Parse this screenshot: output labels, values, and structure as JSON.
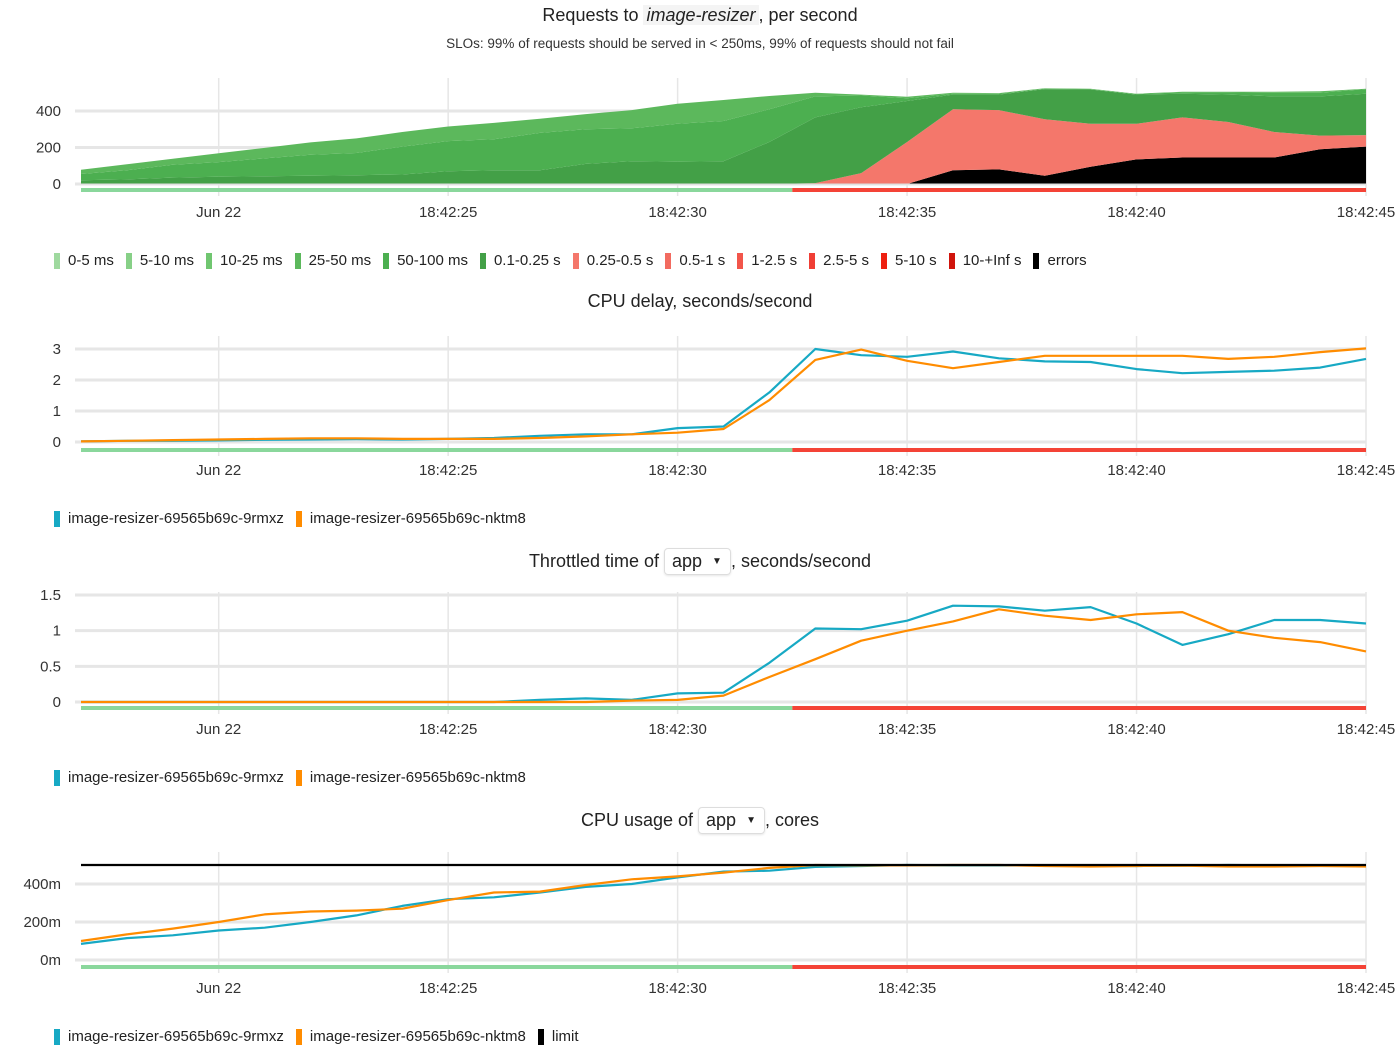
{
  "times": [
    "18:42:17",
    "18:42:18",
    "18:42:19",
    "18:42:20",
    "18:42:21",
    "18:42:22",
    "18:42:23",
    "18:42:24",
    "18:42:25",
    "18:42:26",
    "18:42:27",
    "18:42:28",
    "18:42:29",
    "18:42:30",
    "18:42:31",
    "18:42:32",
    "18:42:33",
    "18:42:34",
    "18:42:35",
    "18:42:36",
    "18:42:37",
    "18:42:38",
    "18:42:39",
    "18:42:40",
    "18:42:41",
    "18:42:42",
    "18:42:43",
    "18:42:44",
    "18:42:45"
  ],
  "x_ticks": [
    {
      "time": "18:42:20",
      "label": "Jun 22"
    },
    {
      "time": "18:42:25",
      "label": "18:42:25"
    },
    {
      "time": "18:42:30",
      "label": "18:42:30"
    },
    {
      "time": "18:42:35",
      "label": "18:42:35"
    },
    {
      "time": "18:42:40",
      "label": "18:42:40"
    },
    {
      "time": "18:42:45",
      "label": "18:42:45"
    }
  ],
  "slo_status": [
    {
      "from": "18:42:17",
      "to": "18:42:32.5",
      "status": "ok",
      "color": "#8ad79c"
    },
    {
      "from": "18:42:32.5",
      "to": "18:42:45",
      "status": "violated",
      "color": "#f44336"
    }
  ],
  "panels": {
    "requests": {
      "title_prefix": "Requests to ",
      "title_service": "image-resizer",
      "title_suffix": ", per second",
      "subtitle": "SLOs: 99% of requests should be served in < 250ms, 99% of requests should not fail"
    },
    "cpu_delay": {
      "title": "CPU delay, seconds/second"
    },
    "throttled": {
      "title_prefix": "Throttled time of ",
      "container": "app",
      "title_suffix": ", seconds/second"
    },
    "cpu_usage": {
      "title_prefix": "CPU usage of ",
      "container": "app",
      "title_suffix": ", cores"
    }
  },
  "chart_data": [
    {
      "type": "area",
      "stacked": true,
      "grid": true,
      "legend": "bottom-left",
      "ylim": [
        0,
        530
      ],
      "y_ticks": [
        {
          "value": 0,
          "label": "0"
        },
        {
          "value": 200,
          "label": "200"
        },
        {
          "value": 400,
          "label": "400"
        }
      ],
      "series": [
        {
          "name": "0-5 ms",
          "color": "#9fd99f",
          "values": []
        },
        {
          "name": "5-10 ms",
          "color": "#87d087",
          "values": []
        },
        {
          "name": "10-25 ms",
          "color": "#70c670",
          "values": []
        },
        {
          "name": "25-50 ms",
          "color": "#5cb85c",
          "values": [
            23,
            33,
            33,
            48,
            58,
            68,
            80,
            80,
            80,
            90,
            78,
            83,
            100,
            110,
            115,
            72,
            20,
            5,
            8,
            5,
            3,
            3,
            2,
            2,
            3,
            3,
            5,
            8,
            2
          ]
        },
        {
          "name": "50-100 ms",
          "color": "#4caf50",
          "values": [
            35,
            50,
            70,
            80,
            98,
            115,
            122,
            153,
            165,
            170,
            205,
            190,
            180,
            208,
            220,
            180,
            115,
            65,
            15,
            5,
            5,
            2,
            2,
            3,
            7,
            12,
            20,
            20,
            25
          ]
        },
        {
          "name": "0.1-0.25 s",
          "color": "#43a047",
          "values": [
            20,
            25,
            35,
            40,
            42,
            45,
            48,
            52,
            70,
            75,
            75,
            110,
            125,
            122,
            125,
            230,
            360,
            360,
            225,
            80,
            85,
            165,
            188,
            160,
            130,
            150,
            195,
            215,
            227
          ]
        },
        {
          "name": "0.25-0.5 s",
          "color": "#f4776b",
          "values": [
            0,
            0,
            0,
            0,
            0,
            0,
            0,
            0,
            0,
            0,
            0,
            0,
            0,
            0,
            0,
            0,
            5,
            60,
            230,
            335,
            325,
            310,
            235,
            195,
            220,
            195,
            140,
            75,
            63
          ]
        },
        {
          "name": "0.5-1 s",
          "color": "#f26b60",
          "values": []
        },
        {
          "name": "1-2.5 s",
          "color": "#f2554a",
          "values": []
        },
        {
          "name": "2.5-5 s",
          "color": "#f03e35",
          "values": []
        },
        {
          "name": "5-10 s",
          "color": "#ee2010",
          "values": []
        },
        {
          "name": "10-+Inf s",
          "color": "#d0140c",
          "values": []
        },
        {
          "name": "errors",
          "color": "#000000",
          "values": [
            0,
            0,
            0,
            0,
            0,
            0,
            0,
            0,
            0,
            0,
            0,
            0,
            0,
            0,
            0,
            0,
            0,
            0,
            0,
            75,
            80,
            45,
            95,
            135,
            145,
            145,
            145,
            190,
            205
          ]
        }
      ]
    },
    {
      "type": "line",
      "grid": true,
      "legend": "bottom-left",
      "ylim": [
        0,
        3.1
      ],
      "y_ticks": [
        {
          "value": 0,
          "label": "0"
        },
        {
          "value": 1,
          "label": "1"
        },
        {
          "value": 2,
          "label": "2"
        },
        {
          "value": 3,
          "label": "3"
        }
      ],
      "series": [
        {
          "name": "image-resizer-69565b69c-9rmxz",
          "color": "#17a9c4",
          "values": [
            0.02,
            0.04,
            0.04,
            0.05,
            0.07,
            0.08,
            0.09,
            0.08,
            0.1,
            0.13,
            0.2,
            0.25,
            0.25,
            0.45,
            0.5,
            1.6,
            3.0,
            2.8,
            2.75,
            2.92,
            2.7,
            2.6,
            2.58,
            2.35,
            2.22,
            2.26,
            2.3,
            2.4,
            2.68
          ]
        },
        {
          "name": "image-resizer-69565b69c-nktm8",
          "color": "#ff8c00",
          "values": [
            0.02,
            0.04,
            0.06,
            0.08,
            0.1,
            0.12,
            0.12,
            0.1,
            0.1,
            0.1,
            0.13,
            0.18,
            0.25,
            0.3,
            0.42,
            1.35,
            2.65,
            2.98,
            2.62,
            2.38,
            2.58,
            2.78,
            2.78,
            2.78,
            2.78,
            2.68,
            2.75,
            2.9,
            3.02
          ]
        }
      ]
    },
    {
      "type": "line",
      "grid": true,
      "legend": "bottom-left",
      "ylim": [
        0,
        1.5
      ],
      "y_ticks": [
        {
          "value": 0,
          "label": "0"
        },
        {
          "value": 0.5,
          "label": "0.5"
        },
        {
          "value": 1,
          "label": "1"
        },
        {
          "value": 1.5,
          "label": "1.5"
        }
      ],
      "series": [
        {
          "name": "image-resizer-69565b69c-9rmxz",
          "color": "#17a9c4",
          "values": [
            0,
            0,
            0,
            0,
            0,
            0,
            0,
            0,
            0,
            0,
            0.03,
            0.05,
            0.03,
            0.12,
            0.13,
            0.55,
            1.03,
            1.02,
            1.14,
            1.35,
            1.34,
            1.28,
            1.33,
            1.1,
            0.8,
            0.95,
            1.15,
            1.15,
            1.1
          ]
        },
        {
          "name": "image-resizer-69565b69c-nktm8",
          "color": "#ff8c00",
          "values": [
            0,
            0,
            0,
            0,
            0,
            0,
            0,
            0,
            0,
            0,
            0,
            0,
            0.02,
            0.03,
            0.09,
            0.35,
            0.6,
            0.86,
            1.0,
            1.13,
            1.3,
            1.21,
            1.15,
            1.23,
            1.26,
            1.0,
            0.9,
            0.84,
            0.71
          ]
        }
      ]
    },
    {
      "type": "line",
      "grid": true,
      "legend": "bottom-left",
      "ylim": [
        0,
        520
      ],
      "unit": "millicores",
      "y_ticks": [
        {
          "value": 0,
          "label": "0m"
        },
        {
          "value": 200,
          "label": "200m"
        },
        {
          "value": 400,
          "label": "400m"
        }
      ],
      "series": [
        {
          "name": "image-resizer-69565b69c-9rmxz",
          "color": "#17a9c4",
          "values": [
            85,
            115,
            130,
            155,
            170,
            200,
            235,
            285,
            320,
            330,
            355,
            385,
            400,
            435,
            465,
            470,
            490,
            495,
            500,
            498,
            498,
            498,
            497,
            495,
            497,
            500,
            498,
            497,
            498
          ]
        },
        {
          "name": "image-resizer-69565b69c-nktm8",
          "color": "#ff8c00",
          "values": [
            100,
            135,
            165,
            200,
            240,
            255,
            260,
            270,
            315,
            355,
            360,
            395,
            425,
            440,
            460,
            485,
            500,
            498,
            498,
            500,
            500,
            495,
            492,
            495,
            497,
            492,
            492,
            495,
            492
          ]
        },
        {
          "name": "limit",
          "color": "#000000",
          "values": [
            500,
            500,
            500,
            500,
            500,
            500,
            500,
            500,
            500,
            500,
            500,
            500,
            500,
            500,
            500,
            500,
            500,
            500,
            500,
            500,
            500,
            500,
            500,
            500,
            500,
            500,
            500,
            500,
            500
          ]
        }
      ]
    }
  ]
}
